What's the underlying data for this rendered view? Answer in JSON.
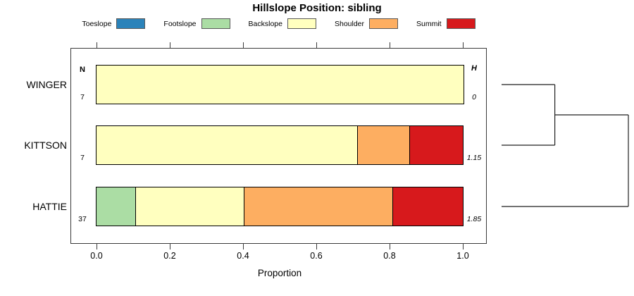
{
  "title": "Hillslope Position: sibling",
  "xlabel": "Proportion",
  "columns": {
    "n_header": "N",
    "h_header": "H"
  },
  "legend": {
    "items": [
      {
        "label": "Toeslope",
        "color": "#2B83BA"
      },
      {
        "label": "Footslope",
        "color": "#ABDDA4"
      },
      {
        "label": "Backslope",
        "color": "#FFFFBF"
      },
      {
        "label": "Shoulder",
        "color": "#FDAE61"
      },
      {
        "label": "Summit",
        "color": "#D7191C"
      }
    ]
  },
  "chart_data": {
    "type": "bar",
    "subtype": "horizontal-stacked-proportion",
    "title": "Hillslope Position: sibling",
    "xlabel": "Proportion",
    "xlim": [
      0,
      1
    ],
    "x_ticks": [
      0.0,
      0.2,
      0.4,
      0.6,
      0.8,
      1.0
    ],
    "grid": false,
    "legend_position": "top",
    "categories": [
      "Toeslope",
      "Footslope",
      "Backslope",
      "Shoulder",
      "Summit"
    ],
    "colors": {
      "Toeslope": "#2B83BA",
      "Footslope": "#ABDDA4",
      "Backslope": "#FFFFBF",
      "Shoulder": "#FDAE61",
      "Summit": "#D7191C"
    },
    "rows": [
      {
        "label": "WINGER",
        "n": "7",
        "h": "0",
        "segments": [
          {
            "name": "Backslope",
            "value": 1.0
          }
        ]
      },
      {
        "label": "KITTSON",
        "n": "7",
        "h": "1.15",
        "segments": [
          {
            "name": "Backslope",
            "value": 0.714
          },
          {
            "name": "Shoulder",
            "value": 0.143
          },
          {
            "name": "Summit",
            "value": 0.143
          }
        ]
      },
      {
        "label": "HATTIE",
        "n": "37",
        "h": "1.85",
        "segments": [
          {
            "name": "Footslope",
            "value": 0.108
          },
          {
            "name": "Backslope",
            "value": 0.297
          },
          {
            "name": "Shoulder",
            "value": 0.405
          },
          {
            "name": "Summit",
            "value": 0.19
          }
        ]
      }
    ],
    "dendrogram": {
      "leaf_order": [
        "WINGER",
        "KITTSON",
        "HATTIE"
      ],
      "merges": [
        {
          "members": [
            "WINGER",
            "KITTSON"
          ],
          "height": 0.42
        },
        {
          "members": [
            "WINGER+KITTSON",
            "HATTIE"
          ],
          "height": 1.0
        }
      ]
    }
  }
}
